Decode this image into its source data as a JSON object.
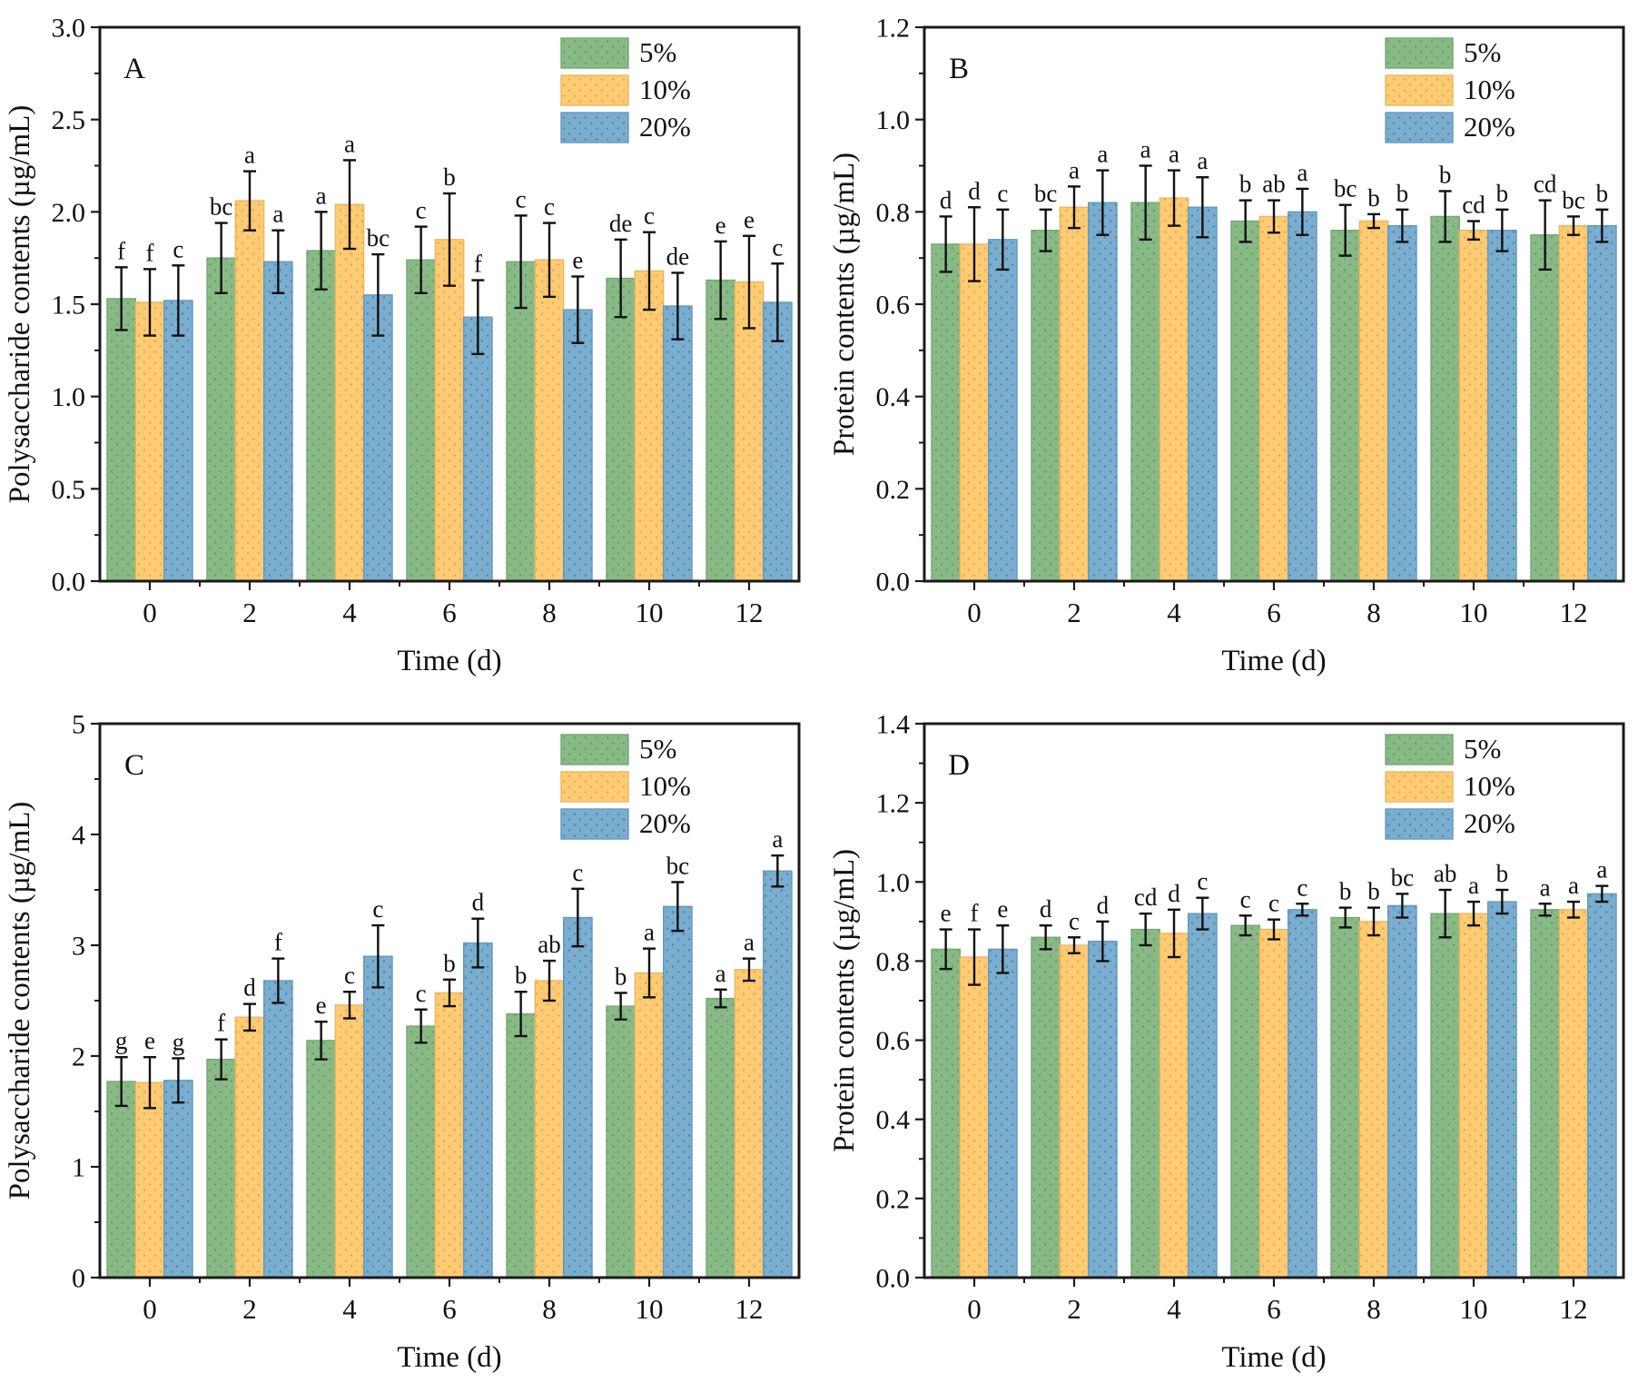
{
  "figure": {
    "background": "#ffffff",
    "frame_color": "#1a1a1a",
    "errorbar_color": "#111111",
    "series_styles": [
      {
        "name": "5%",
        "color": "#8ab988",
        "dot_color": "#56a356",
        "edge_color": "#74a872"
      },
      {
        "name": "10%",
        "color": "#fccb74",
        "dot_color": "#f29f3f",
        "edge_color": "#ecb65c"
      },
      {
        "name": "20%",
        "color": "#7aadce",
        "dot_color": "#4484b1",
        "edge_color": "#6399bf"
      }
    ],
    "legend": {
      "items": [
        "5%",
        "10%",
        "20%"
      ],
      "position": "top-right"
    }
  },
  "chart_data": [
    {
      "type": "bar",
      "panel_label": "A",
      "ylabel": "Polysaccharide contents (µg/mL)",
      "xlabel": "Time (d)",
      "categories": [
        "0",
        "2",
        "4",
        "6",
        "8",
        "10",
        "12"
      ],
      "ylim": [
        0,
        3.0
      ],
      "ytick_step": 0.5,
      "yticks": [
        "0.0",
        "0.5",
        "1.0",
        "1.5",
        "2.0",
        "2.5",
        "3.0"
      ],
      "grid": false,
      "legend_position": "top-right",
      "series": [
        {
          "name": "5%",
          "values": [
            1.53,
            1.75,
            1.79,
            1.74,
            1.73,
            1.64,
            1.63
          ],
          "errors": [
            0.17,
            0.19,
            0.21,
            0.18,
            0.25,
            0.21,
            0.21
          ],
          "letters": [
            "f",
            "bc",
            "a",
            "c",
            "c",
            "de",
            "e"
          ]
        },
        {
          "name": "10%",
          "values": [
            1.51,
            2.06,
            2.04,
            1.85,
            1.74,
            1.68,
            1.62
          ],
          "errors": [
            0.18,
            0.16,
            0.24,
            0.25,
            0.2,
            0.21,
            0.25
          ],
          "letters": [
            "f",
            "a",
            "a",
            "b",
            "c",
            "c",
            "e"
          ]
        },
        {
          "name": "20%",
          "values": [
            1.52,
            1.73,
            1.55,
            1.43,
            1.47,
            1.49,
            1.51
          ],
          "errors": [
            0.19,
            0.17,
            0.22,
            0.2,
            0.18,
            0.18,
            0.21
          ],
          "letters": [
            "c",
            "a",
            "bc",
            "f",
            "e",
            "de",
            "c"
          ]
        }
      ]
    },
    {
      "type": "bar",
      "panel_label": "B",
      "ylabel": "Protein contents (µg/mL)",
      "xlabel": "Time (d)",
      "categories": [
        "0",
        "2",
        "4",
        "6",
        "8",
        "10",
        "12"
      ],
      "ylim": [
        0,
        1.2
      ],
      "ytick_step": 0.2,
      "yticks": [
        "0.0",
        "0.2",
        "0.4",
        "0.6",
        "0.8",
        "1.0",
        "1.2"
      ],
      "grid": false,
      "legend_position": "top-right",
      "series": [
        {
          "name": "5%",
          "values": [
            0.73,
            0.76,
            0.82,
            0.78,
            0.76,
            0.79,
            0.75
          ],
          "errors": [
            0.06,
            0.045,
            0.08,
            0.045,
            0.055,
            0.055,
            0.075
          ],
          "letters": [
            "d",
            "bc",
            "a",
            "b",
            "bc",
            "b",
            "cd"
          ]
        },
        {
          "name": "10%",
          "values": [
            0.73,
            0.81,
            0.83,
            0.79,
            0.78,
            0.76,
            0.77
          ],
          "errors": [
            0.08,
            0.045,
            0.06,
            0.035,
            0.015,
            0.02,
            0.02
          ],
          "letters": [
            "d",
            "a",
            "a",
            "ab",
            "b",
            "cd",
            "bc"
          ]
        },
        {
          "name": "20%",
          "values": [
            0.74,
            0.82,
            0.81,
            0.8,
            0.77,
            0.76,
            0.77
          ],
          "errors": [
            0.065,
            0.07,
            0.065,
            0.05,
            0.035,
            0.045,
            0.035
          ],
          "letters": [
            "c",
            "a",
            "a",
            "a",
            "b",
            "b",
            "b"
          ]
        }
      ]
    },
    {
      "type": "bar",
      "panel_label": "C",
      "ylabel": "Polysaccharide contents (µg/mL)",
      "xlabel": "Time (d)",
      "categories": [
        "0",
        "2",
        "4",
        "6",
        "8",
        "10",
        "12"
      ],
      "ylim": [
        0,
        5
      ],
      "ytick_step": 1,
      "yticks": [
        "0",
        "1",
        "2",
        "3",
        "4",
        "5"
      ],
      "grid": false,
      "legend_position": "top-right",
      "series": [
        {
          "name": "5%",
          "values": [
            1.77,
            1.97,
            2.14,
            2.27,
            2.38,
            2.45,
            2.52
          ],
          "errors": [
            0.22,
            0.18,
            0.17,
            0.15,
            0.2,
            0.12,
            0.08
          ],
          "letters": [
            "g",
            "f",
            "e",
            "c",
            "b",
            "b",
            "a"
          ]
        },
        {
          "name": "10%",
          "values": [
            1.76,
            2.35,
            2.46,
            2.57,
            2.68,
            2.75,
            2.78
          ],
          "errors": [
            0.23,
            0.12,
            0.12,
            0.12,
            0.18,
            0.22,
            0.1
          ],
          "letters": [
            "e",
            "d",
            "c",
            "b",
            "ab",
            "a",
            "a"
          ]
        },
        {
          "name": "20%",
          "values": [
            1.78,
            2.68,
            2.9,
            3.02,
            3.25,
            3.35,
            3.67
          ],
          "errors": [
            0.2,
            0.2,
            0.28,
            0.22,
            0.26,
            0.22,
            0.14
          ],
          "letters": [
            "g",
            "f",
            "c",
            "d",
            "c",
            "bc",
            "a"
          ]
        }
      ]
    },
    {
      "type": "bar",
      "panel_label": "D",
      "ylabel": "Protein contents (µg/mL)",
      "xlabel": "Time (d)",
      "categories": [
        "0",
        "2",
        "4",
        "6",
        "8",
        "10",
        "12"
      ],
      "ylim": [
        0,
        1.4
      ],
      "ytick_step": 0.2,
      "yticks": [
        "0.0",
        "0.2",
        "0.4",
        "0.6",
        "0.8",
        "1.0",
        "1.2",
        "1.4"
      ],
      "grid": false,
      "legend_position": "top-right",
      "series": [
        {
          "name": "5%",
          "values": [
            0.83,
            0.86,
            0.88,
            0.89,
            0.91,
            0.92,
            0.93
          ],
          "errors": [
            0.05,
            0.03,
            0.04,
            0.025,
            0.025,
            0.06,
            0.015
          ],
          "letters": [
            "e",
            "d",
            "cd",
            "c",
            "b",
            "ab",
            "a"
          ]
        },
        {
          "name": "10%",
          "values": [
            0.81,
            0.84,
            0.87,
            0.88,
            0.9,
            0.92,
            0.93
          ],
          "errors": [
            0.07,
            0.02,
            0.06,
            0.025,
            0.035,
            0.03,
            0.02
          ],
          "letters": [
            "f",
            "c",
            "d",
            "c",
            "b",
            "a",
            "a"
          ]
        },
        {
          "name": "20%",
          "values": [
            0.83,
            0.85,
            0.92,
            0.93,
            0.94,
            0.95,
            0.97
          ],
          "errors": [
            0.06,
            0.05,
            0.04,
            0.015,
            0.03,
            0.03,
            0.02
          ],
          "letters": [
            "e",
            "d",
            "c",
            "c",
            "bc",
            "b",
            "a"
          ]
        }
      ]
    }
  ]
}
